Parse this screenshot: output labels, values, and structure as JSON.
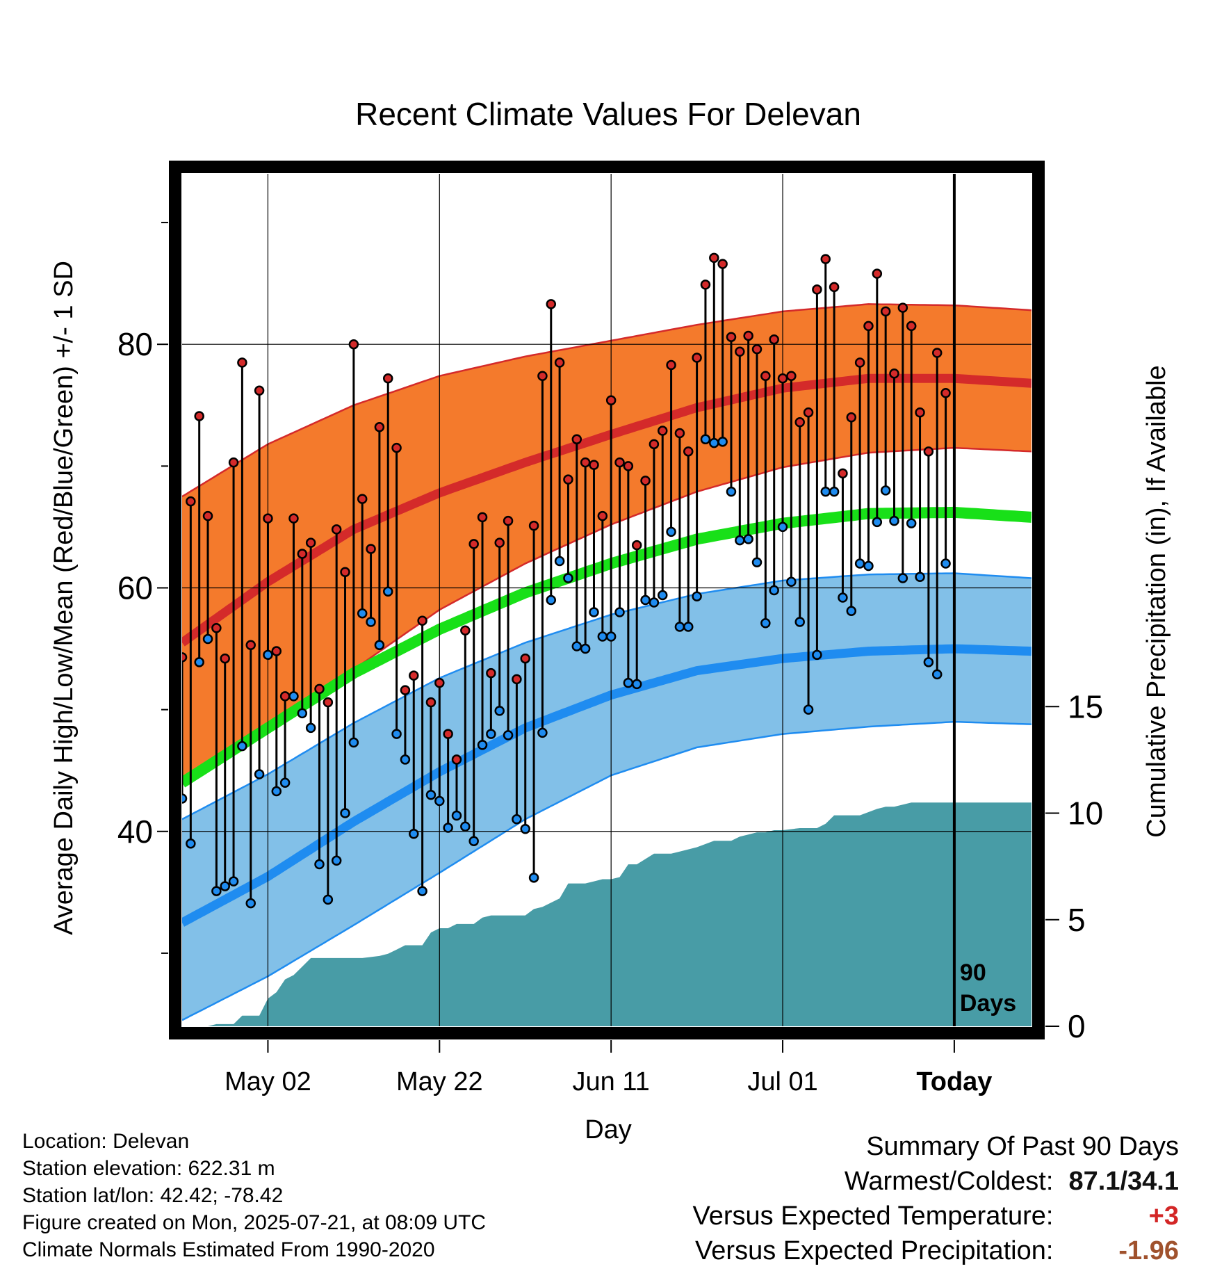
{
  "chart_data": {
    "type": "line",
    "title": "Recent Climate Values For Delevan",
    "xlabel": "Day",
    "ylabel": "Average Daily High/Low/Mean (Red/Blue/Green) +/- 1 SD",
    "y2label": "Cumulative Precipitation (in), If Available",
    "x_tick_labels": [
      "May 02",
      "May 22",
      "Jun 11",
      "Jul 01",
      "Today"
    ],
    "x_tick_days": [
      11,
      31,
      51,
      71,
      91
    ],
    "x_range_days": [
      1,
      100
    ],
    "ylim": [
      24,
      94
    ],
    "y_ticks": [
      40,
      60,
      80
    ],
    "y2lim": [
      0,
      40
    ],
    "y2_ticks": [
      0,
      5,
      10,
      15
    ],
    "today_marker": {
      "day": 91,
      "label_line1": "90",
      "label_line2": "Days"
    },
    "grid": true,
    "colors": {
      "high_band": "#f47a2c",
      "high_mean": "#d42a2a",
      "low_band": "#82c0e8",
      "low_mean": "#1f8cf0",
      "mean": "#18e018",
      "precip": "#489ca6",
      "high_point": "#d42a2a",
      "low_point": "#1f8cf0"
    },
    "normals": {
      "days": [
        1,
        11,
        21,
        31,
        41,
        51,
        61,
        71,
        81,
        91,
        100
      ],
      "high_mean": [
        55.5,
        60.5,
        64.8,
        67.8,
        70.3,
        72.6,
        74.8,
        76.4,
        77.2,
        77.2,
        76.8
      ],
      "high_upper": [
        67.5,
        71.8,
        75.0,
        77.4,
        79.0,
        80.3,
        81.6,
        82.7,
        83.3,
        83.2,
        82.8
      ],
      "high_lower": [
        44.0,
        48.3,
        53.3,
        58.2,
        62.0,
        65.2,
        67.9,
        69.9,
        71.1,
        71.5,
        71.2
      ],
      "mean": [
        44.0,
        48.5,
        53.0,
        56.6,
        59.6,
        62.0,
        64.0,
        65.3,
        66.1,
        66.2,
        65.8
      ],
      "low_mean": [
        32.5,
        36.3,
        40.8,
        44.9,
        48.5,
        51.2,
        53.2,
        54.2,
        54.8,
        55.0,
        54.8
      ],
      "low_upper": [
        41.0,
        44.7,
        48.9,
        52.6,
        55.5,
        57.8,
        59.5,
        60.6,
        61.1,
        61.2,
        60.8
      ],
      "low_lower": [
        24.5,
        28.1,
        32.3,
        36.6,
        41.0,
        44.6,
        46.9,
        48.0,
        48.6,
        49.0,
        48.8
      ]
    },
    "series": [
      {
        "name": "High",
        "values": [
          54.3,
          67.1,
          74.1,
          65.9,
          56.7,
          54.2,
          70.3,
          78.5,
          55.3,
          76.2,
          65.7,
          54.8,
          51.1,
          65.7,
          62.8,
          63.7,
          51.7,
          50.6,
          64.8,
          61.3,
          80.0,
          67.3,
          63.2,
          73.2,
          77.2,
          71.5,
          51.6,
          52.8,
          57.3,
          50.6,
          52.2,
          48.0,
          45.9,
          56.5,
          63.6,
          65.8,
          53.0,
          63.7,
          65.5,
          52.5,
          54.2,
          65.1,
          77.4,
          83.3,
          78.5,
          68.9,
          72.2,
          70.3,
          70.1,
          65.9,
          75.4,
          70.3,
          70.0,
          63.5,
          68.8,
          71.8,
          72.9,
          78.3,
          72.7,
          71.2,
          78.9,
          84.9,
          87.1,
          86.6,
          80.6,
          79.4,
          80.7,
          79.6,
          77.4,
          80.4,
          77.2,
          77.4,
          73.6,
          74.4,
          84.5,
          87.0,
          84.7,
          69.4,
          74.0,
          78.5,
          81.5,
          85.8,
          82.7,
          77.6,
          83.0,
          81.5,
          74.4,
          71.2,
          79.3,
          76.0
        ]
      },
      {
        "name": "Low",
        "values": [
          42.7,
          39.0,
          53.9,
          55.8,
          35.1,
          35.5,
          35.9,
          47.0,
          34.1,
          44.7,
          54.5,
          43.3,
          44.0,
          51.1,
          49.7,
          48.5,
          37.3,
          34.4,
          37.6,
          41.5,
          47.3,
          57.9,
          57.2,
          55.3,
          59.7,
          48.0,
          45.9,
          39.8,
          35.1,
          43.0,
          42.5,
          40.3,
          41.3,
          40.4,
          39.2,
          47.1,
          48.0,
          49.9,
          47.9,
          41.0,
          40.2,
          36.2,
          48.1,
          59.0,
          62.2,
          60.8,
          55.2,
          55.0,
          58.0,
          56.0,
          56.0,
          58.0,
          52.2,
          52.1,
          59.0,
          58.8,
          59.4,
          64.6,
          56.8,
          56.8,
          59.3,
          72.2,
          71.9,
          72.0,
          67.9,
          63.9,
          64.0,
          62.1,
          57.1,
          59.8,
          65.0,
          60.5,
          57.2,
          50.0,
          54.5,
          67.9,
          67.9,
          59.2,
          58.1,
          62.0,
          61.8,
          65.4,
          68.0,
          65.5,
          60.8,
          65.3,
          60.9,
          53.9,
          52.9,
          62.0
        ]
      }
    ],
    "precip_cumulative": {
      "days": [
        1,
        4,
        5,
        7,
        8,
        10,
        11,
        12,
        13,
        14,
        15,
        16,
        18,
        20,
        22,
        24,
        25,
        26,
        27,
        29,
        30,
        31,
        32,
        33,
        35,
        36,
        37,
        38,
        39,
        40,
        41,
        42,
        43,
        45,
        46,
        47,
        48,
        49,
        50,
        51,
        52,
        53,
        54,
        56,
        57,
        58,
        59,
        61,
        63,
        65,
        66,
        67,
        68,
        69,
        70,
        71,
        73,
        75,
        76,
        77,
        78,
        80,
        82,
        83,
        84,
        86,
        89,
        90,
        92,
        100
      ],
      "values": [
        0,
        0,
        0.1,
        0.1,
        0.5,
        0.5,
        1.3,
        1.6,
        2.2,
        2.4,
        2.8,
        3.2,
        3.2,
        3.2,
        3.2,
        3.3,
        3.4,
        3.6,
        3.8,
        3.8,
        4.4,
        4.6,
        4.6,
        4.8,
        4.8,
        5.1,
        5.2,
        5.2,
        5.2,
        5.2,
        5.2,
        5.5,
        5.6,
        6.0,
        6.7,
        6.7,
        6.7,
        6.8,
        6.9,
        6.9,
        7.0,
        7.6,
        7.6,
        8.1,
        8.1,
        8.1,
        8.2,
        8.4,
        8.7,
        8.7,
        8.9,
        9.0,
        9.1,
        9.1,
        9.2,
        9.2,
        9.3,
        9.3,
        9.5,
        9.9,
        9.9,
        9.9,
        10.2,
        10.3,
        10.3,
        10.5,
        10.5,
        10.5,
        10.5,
        10.5
      ]
    }
  },
  "info": {
    "location": "Location: Delevan",
    "elevation": "Station elevation: 622.31 m",
    "latlon": "Station lat/lon: 42.42; -78.42",
    "created": "Figure created on Mon, 2025-07-21, at 08:09 UTC",
    "normals": "Climate Normals Estimated From 1990-2020"
  },
  "summary": {
    "heading": "Summary Of Past 90 Days",
    "warmest_coldest_label": "Warmest/Coldest:",
    "warmest_coldest_value": "87.1/34.1",
    "temp_label": "Versus Expected Temperature:",
    "temp_value": "+3",
    "precip_label": "Versus Expected Precipitation:",
    "precip_value": "-1.96"
  }
}
